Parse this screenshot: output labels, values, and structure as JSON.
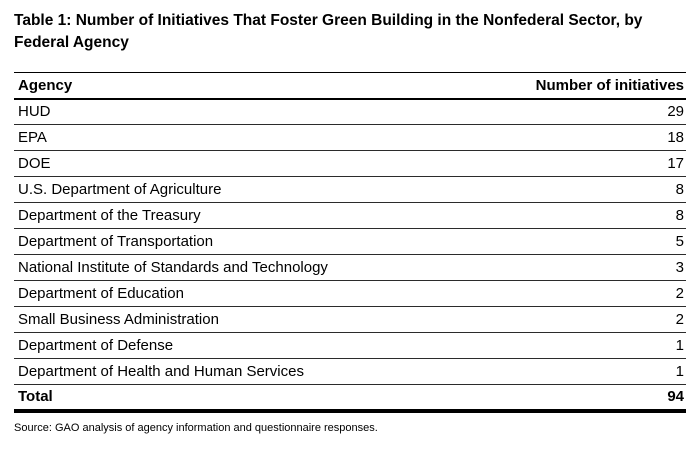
{
  "page": {
    "title": "Table 1: Number of Initiatives That Foster Green Building in the Nonfederal Sector, by Federal Agency",
    "source_note": "Source: GAO analysis of agency information and questionnaire responses."
  },
  "table": {
    "columns": [
      "Agency",
      "Number of initiatives"
    ],
    "rows": [
      {
        "agency": "HUD",
        "count": "29"
      },
      {
        "agency": "EPA",
        "count": "18"
      },
      {
        "agency": "DOE",
        "count": "17"
      },
      {
        "agency": "U.S. Department of Agriculture",
        "count": "8"
      },
      {
        "agency": "Department of the Treasury",
        "count": "8"
      },
      {
        "agency": "Department of Transportation",
        "count": "5"
      },
      {
        "agency": "National Institute of Standards and Technology",
        "count": "3"
      },
      {
        "agency": "Department of Education",
        "count": "2"
      },
      {
        "agency": "Small Business Administration",
        "count": "2"
      },
      {
        "agency": "Department of Defense",
        "count": "1"
      },
      {
        "agency": "Department of Health and Human Services",
        "count": "1"
      }
    ],
    "total": {
      "label": "Total",
      "count": "94"
    }
  },
  "chart_data": {
    "type": "table",
    "title": "Table 1: Number of Initiatives That Foster Green Building in the Nonfederal Sector, by Federal Agency",
    "columns": [
      "Agency",
      "Number of initiatives"
    ],
    "categories": [
      "HUD",
      "EPA",
      "DOE",
      "U.S. Department of Agriculture",
      "Department of the Treasury",
      "Department of Transportation",
      "National Institute of Standards and Technology",
      "Department of Education",
      "Small Business Administration",
      "Department of Defense",
      "Department of Health and Human Services"
    ],
    "values": [
      29,
      18,
      17,
      8,
      8,
      5,
      3,
      2,
      2,
      1,
      1
    ],
    "total": 94,
    "source": "Source: GAO analysis of agency information and questionnaire responses."
  },
  "colors": {
    "background": "#ffffff",
    "text": "#000000",
    "rule_thin": "#2b2b2b",
    "rule_heavy": "#000000"
  }
}
